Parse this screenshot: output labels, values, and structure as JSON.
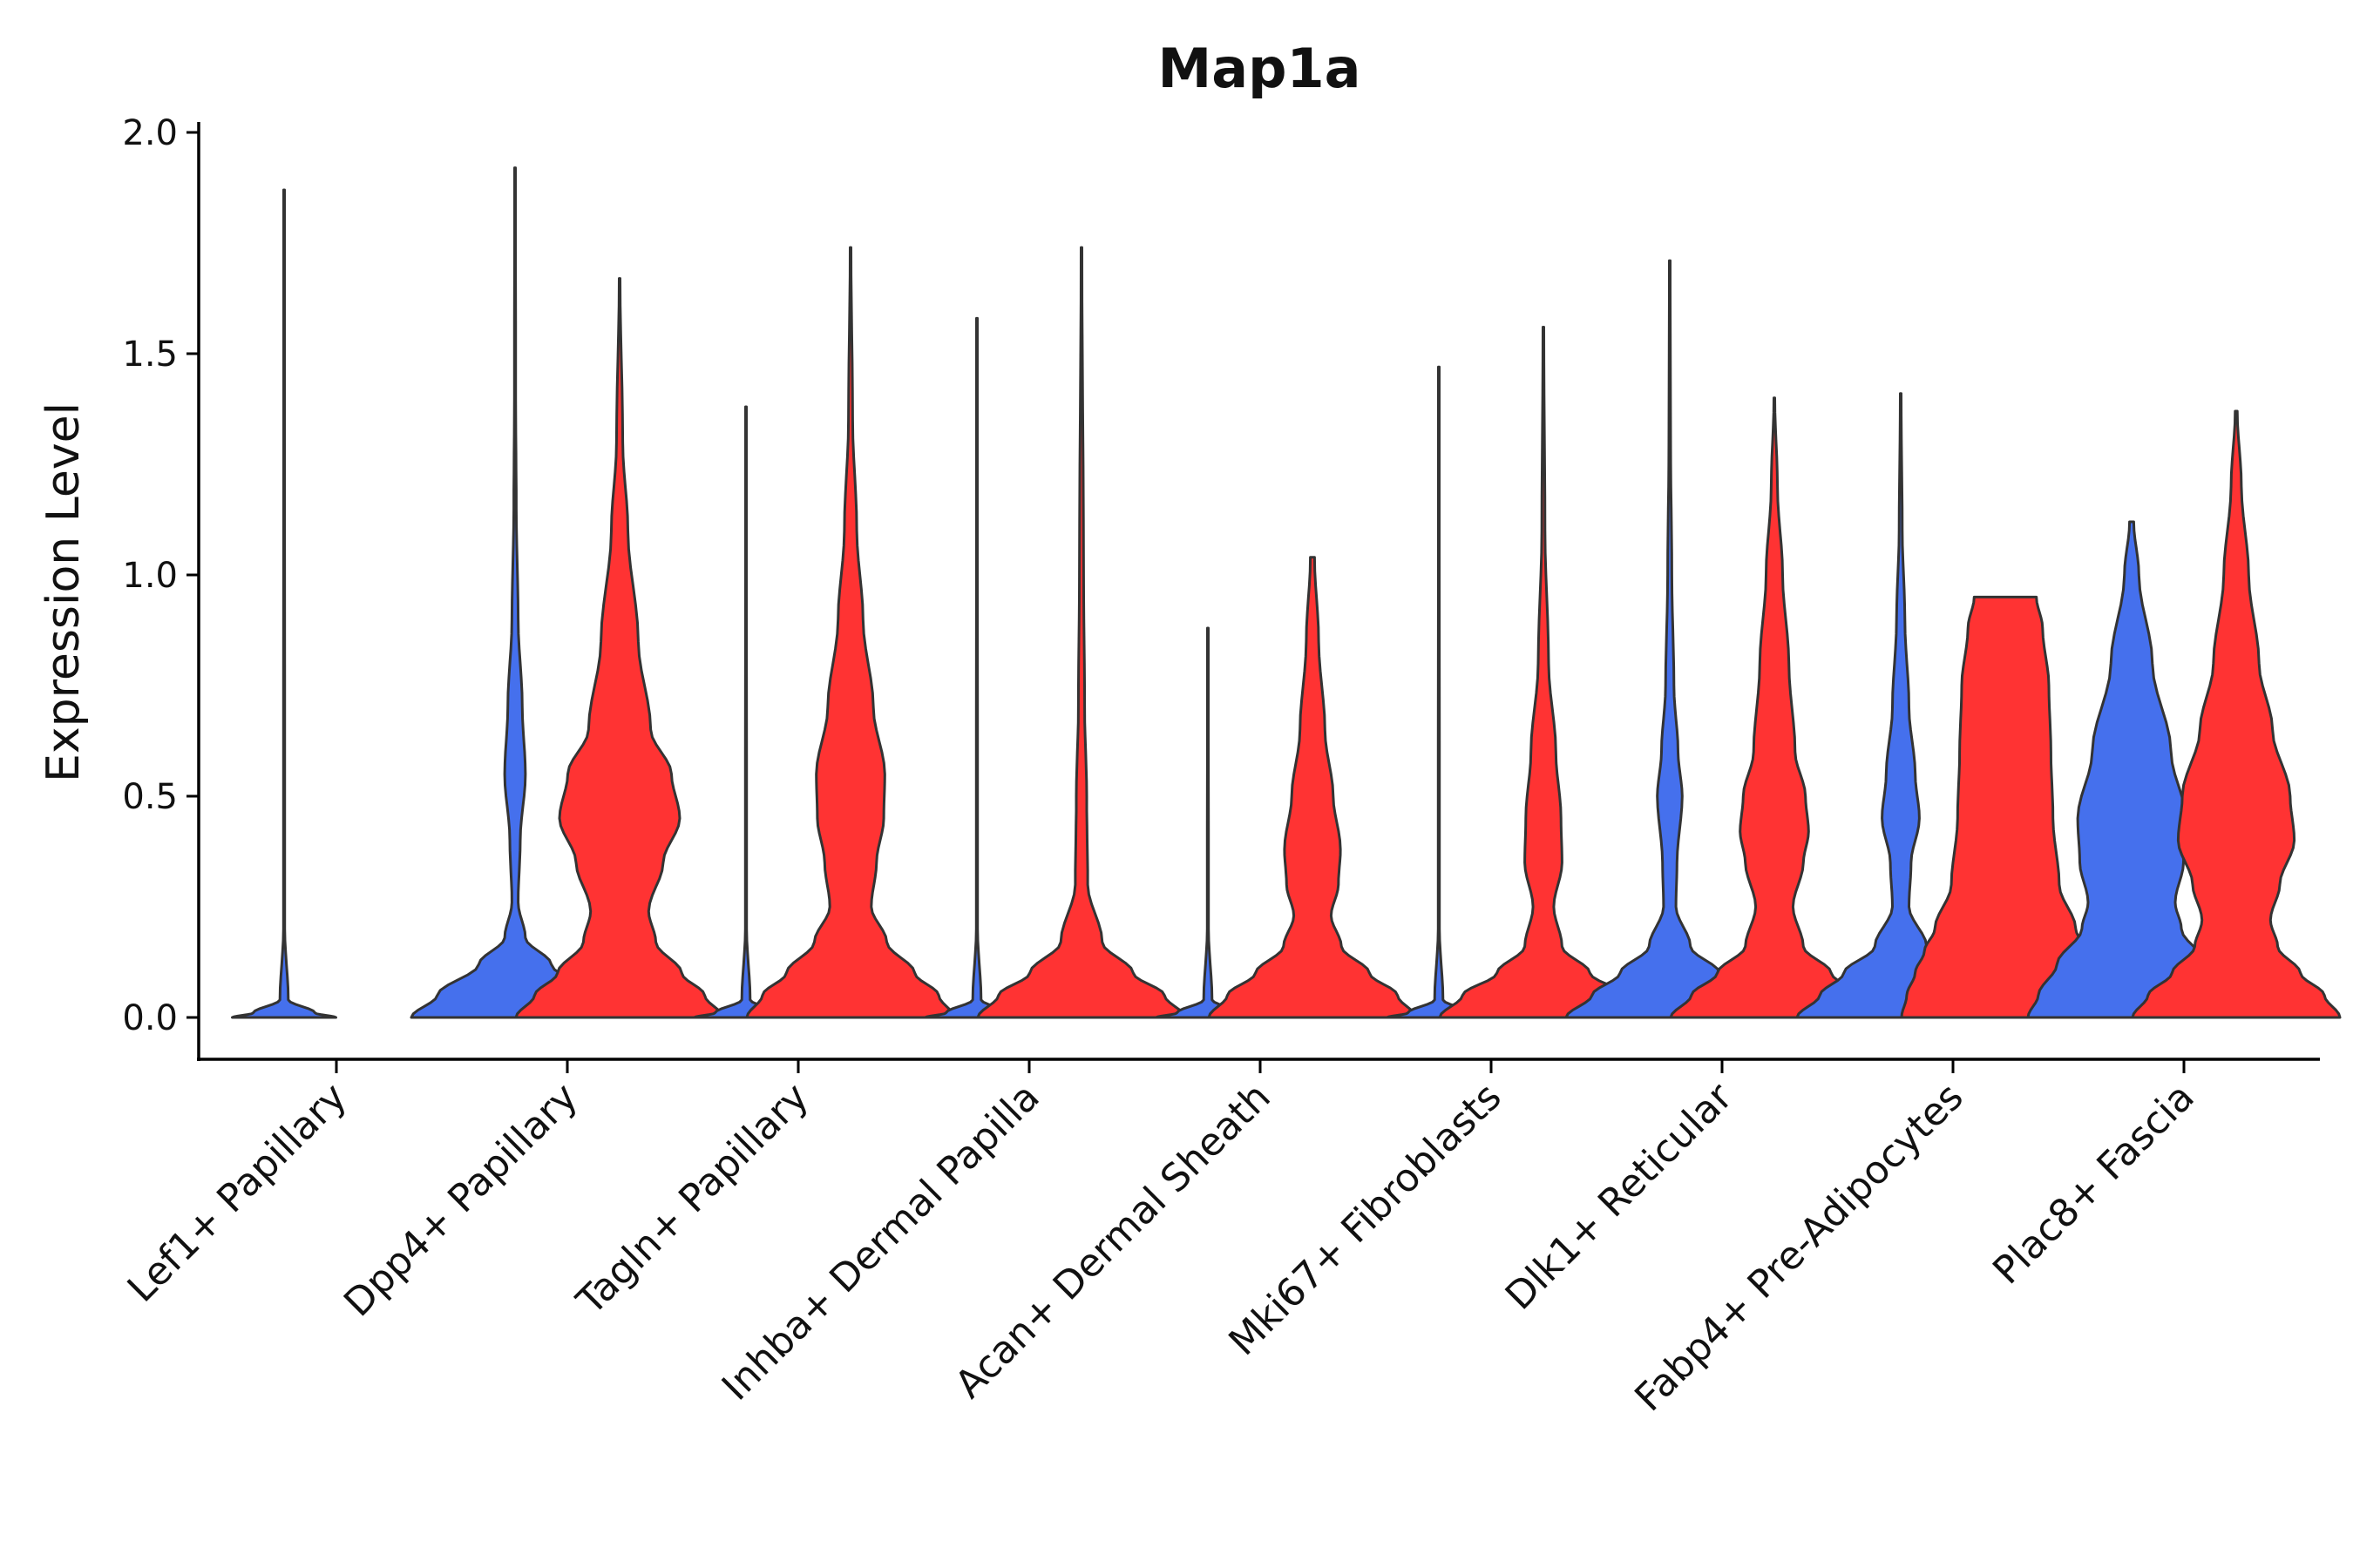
{
  "chart_data": {
    "type": "violin",
    "title": "Map1a",
    "xlabel": "",
    "ylabel": "Expression Level",
    "ylim": [
      -0.1,
      2.0
    ],
    "yticks": [
      "0.0",
      "0.5",
      "1.0",
      "1.5",
      "2.0"
    ],
    "grid": false,
    "legend": "none",
    "colors": {
      "group1": "#4570ED",
      "group2": "#FF3333",
      "outline": "#333333"
    },
    "categories": [
      "Lef1+ Papillary",
      "Dpp4+ Papillary",
      "Tagln+ Papillary",
      "Inhba+ Dermal Papilla",
      "Acan+ Dermal Sheath",
      "Mki67+ Fibroblasts",
      "Dlk1+ Reticular",
      "Fabp4+ Pre-Adipocytes",
      "Plac8+ Fascia"
    ],
    "series": [
      {
        "name": "group1",
        "color": "#4570ED",
        "max_values": [
          1.87,
          1.92,
          1.38,
          1.58,
          0.88,
          1.47,
          1.71,
          1.41,
          1.12
        ],
        "profiles": [
          [
            [
              0,
              0.5
            ],
            [
              0.01,
              0.3
            ],
            [
              0.04,
              0.04
            ],
            [
              0.2,
              0.006
            ],
            [
              1.87,
              0.004
            ]
          ],
          [
            [
              0,
              1.0
            ],
            [
              0.05,
              0.75
            ],
            [
              0.12,
              0.35
            ],
            [
              0.18,
              0.1
            ],
            [
              0.26,
              0.03
            ],
            [
              0.4,
              0.05
            ],
            [
              0.55,
              0.1
            ],
            [
              0.7,
              0.07
            ],
            [
              0.9,
              0.03
            ],
            [
              1.15,
              0.012
            ],
            [
              1.4,
              0.006
            ],
            [
              1.92,
              0.004
            ]
          ],
          [
            [
              0,
              0.5
            ],
            [
              0.01,
              0.3
            ],
            [
              0.04,
              0.04
            ],
            [
              0.2,
              0.006
            ],
            [
              1.38,
              0.004
            ]
          ],
          [
            [
              0,
              0.5
            ],
            [
              0.01,
              0.3
            ],
            [
              0.04,
              0.04
            ],
            [
              0.2,
              0.006
            ],
            [
              1.58,
              0.004
            ]
          ],
          [
            [
              0,
              0.5
            ],
            [
              0.01,
              0.3
            ],
            [
              0.04,
              0.04
            ],
            [
              0.2,
              0.006
            ],
            [
              0.88,
              0.004
            ]
          ],
          [
            [
              0,
              0.5
            ],
            [
              0.01,
              0.3
            ],
            [
              0.04,
              0.04
            ],
            [
              0.2,
              0.006
            ],
            [
              1.47,
              0.004
            ]
          ],
          [
            [
              0,
              1.0
            ],
            [
              0.05,
              0.75
            ],
            [
              0.1,
              0.48
            ],
            [
              0.16,
              0.2
            ],
            [
              0.25,
              0.06
            ],
            [
              0.35,
              0.07
            ],
            [
              0.5,
              0.12
            ],
            [
              0.6,
              0.08
            ],
            [
              0.75,
              0.04
            ],
            [
              1.0,
              0.02
            ],
            [
              1.3,
              0.008
            ],
            [
              1.71,
              0.004
            ]
          ],
          [
            [
              0,
              1.0
            ],
            [
              0.05,
              0.78
            ],
            [
              0.1,
              0.55
            ],
            [
              0.16,
              0.25
            ],
            [
              0.25,
              0.08
            ],
            [
              0.35,
              0.1
            ],
            [
              0.45,
              0.18
            ],
            [
              0.55,
              0.14
            ],
            [
              0.7,
              0.08
            ],
            [
              0.9,
              0.04
            ],
            [
              1.1,
              0.015
            ],
            [
              1.41,
              0.004
            ]
          ],
          [
            [
              0,
              1.0
            ],
            [
              0.05,
              0.9
            ],
            [
              0.12,
              0.72
            ],
            [
              0.2,
              0.48
            ],
            [
              0.26,
              0.42
            ],
            [
              0.35,
              0.5
            ],
            [
              0.45,
              0.52
            ],
            [
              0.6,
              0.38
            ],
            [
              0.8,
              0.2
            ],
            [
              1.0,
              0.07
            ],
            [
              1.12,
              0.02
            ]
          ]
        ]
      },
      {
        "name": "group2",
        "color": "#FF3333",
        "max_values": [
          0,
          1.67,
          1.74,
          1.74,
          1.04,
          1.56,
          1.4,
          0.95,
          1.37
        ],
        "profiles": [
          [],
          [
            [
              0,
              1.0
            ],
            [
              0.05,
              0.82
            ],
            [
              0.1,
              0.6
            ],
            [
              0.17,
              0.35
            ],
            [
              0.24,
              0.28
            ],
            [
              0.35,
              0.42
            ],
            [
              0.45,
              0.58
            ],
            [
              0.55,
              0.5
            ],
            [
              0.65,
              0.3
            ],
            [
              0.85,
              0.18
            ],
            [
              1.1,
              0.08
            ],
            [
              1.3,
              0.03
            ],
            [
              1.67,
              0.004
            ]
          ],
          [
            [
              0,
              1.0
            ],
            [
              0.05,
              0.85
            ],
            [
              0.1,
              0.62
            ],
            [
              0.17,
              0.35
            ],
            [
              0.25,
              0.2
            ],
            [
              0.35,
              0.25
            ],
            [
              0.45,
              0.32
            ],
            [
              0.55,
              0.33
            ],
            [
              0.7,
              0.22
            ],
            [
              0.9,
              0.12
            ],
            [
              1.1,
              0.06
            ],
            [
              1.35,
              0.02
            ],
            [
              1.74,
              0.004
            ]
          ],
          [
            [
              0,
              1.0
            ],
            [
              0.05,
              0.8
            ],
            [
              0.1,
              0.5
            ],
            [
              0.17,
              0.2
            ],
            [
              0.3,
              0.06
            ],
            [
              0.5,
              0.05
            ],
            [
              0.7,
              0.03
            ],
            [
              1.0,
              0.02
            ],
            [
              1.74,
              0.004
            ]
          ],
          [
            [
              0,
              1.0
            ],
            [
              0.05,
              0.82
            ],
            [
              0.1,
              0.55
            ],
            [
              0.16,
              0.28
            ],
            [
              0.23,
              0.18
            ],
            [
              0.3,
              0.25
            ],
            [
              0.38,
              0.27
            ],
            [
              0.5,
              0.2
            ],
            [
              0.65,
              0.12
            ],
            [
              0.85,
              0.06
            ],
            [
              1.04,
              0.02
            ]
          ],
          [
            [
              0,
              1.0
            ],
            [
              0.05,
              0.78
            ],
            [
              0.1,
              0.45
            ],
            [
              0.16,
              0.18
            ],
            [
              0.25,
              0.1
            ],
            [
              0.35,
              0.18
            ],
            [
              0.45,
              0.17
            ],
            [
              0.6,
              0.12
            ],
            [
              0.8,
              0.05
            ],
            [
              1.1,
              0.015
            ],
            [
              1.56,
              0.004
            ]
          ],
          [
            [
              0,
              1.0
            ],
            [
              0.05,
              0.8
            ],
            [
              0.1,
              0.55
            ],
            [
              0.16,
              0.28
            ],
            [
              0.25,
              0.18
            ],
            [
              0.35,
              0.28
            ],
            [
              0.42,
              0.33
            ],
            [
              0.5,
              0.3
            ],
            [
              0.6,
              0.2
            ],
            [
              0.8,
              0.14
            ],
            [
              1.0,
              0.08
            ],
            [
              1.2,
              0.03
            ],
            [
              1.4,
              0.004
            ]
          ],
          [
            [
              0,
              1.0
            ],
            [
              0.05,
              0.95
            ],
            [
              0.1,
              0.87
            ],
            [
              0.15,
              0.78
            ],
            [
              0.2,
              0.68
            ],
            [
              0.3,
              0.52
            ],
            [
              0.45,
              0.46
            ],
            [
              0.6,
              0.44
            ],
            [
              0.75,
              0.42
            ],
            [
              0.88,
              0.36
            ],
            [
              0.95,
              0.3
            ]
          ],
          [
            [
              0,
              1.0
            ],
            [
              0.05,
              0.85
            ],
            [
              0.1,
              0.62
            ],
            [
              0.16,
              0.4
            ],
            [
              0.22,
              0.33
            ],
            [
              0.3,
              0.42
            ],
            [
              0.4,
              0.56
            ],
            [
              0.5,
              0.52
            ],
            [
              0.65,
              0.35
            ],
            [
              0.8,
              0.22
            ],
            [
              1.0,
              0.12
            ],
            [
              1.2,
              0.05
            ],
            [
              1.37,
              0.01
            ]
          ]
        ]
      }
    ]
  }
}
